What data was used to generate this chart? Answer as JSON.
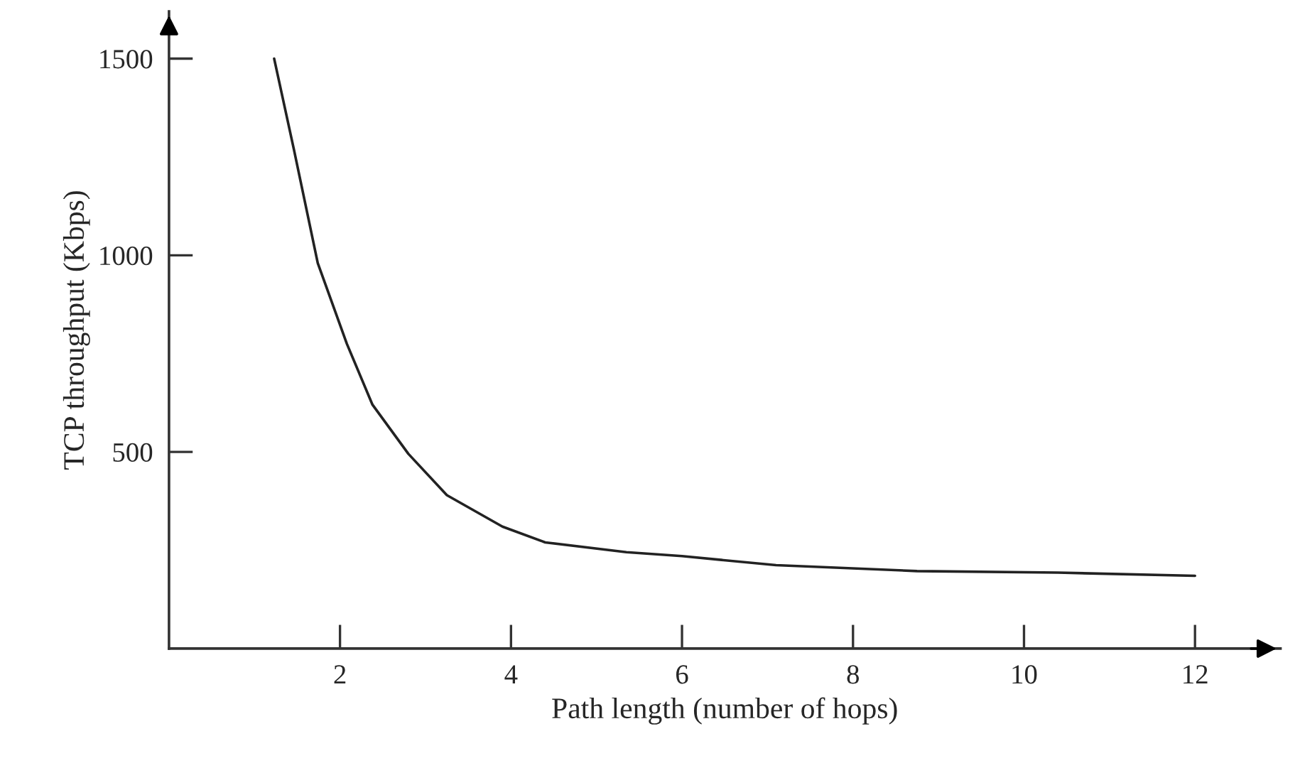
{
  "chart_data": {
    "type": "line",
    "xlabel": "Path length (number of hops)",
    "ylabel": "TCP throughput (Kbps)",
    "x": [
      1.23,
      1.46,
      1.74,
      2.08,
      2.38,
      2.8,
      3.25,
      3.9,
      4.4,
      5.35,
      6.0,
      7.1,
      8.75,
      10.4,
      12.0
    ],
    "series": [
      {
        "color": "#222222",
        "values": [
          1500,
          1270,
          980,
          775,
          620,
          495,
          390,
          310,
          270,
          245,
          235,
          212,
          197,
          193,
          185
        ]
      }
    ],
    "xlim": [
      0,
      13
    ],
    "ylim": [
      0,
      1620
    ],
    "xticks": [
      2,
      4,
      6,
      8,
      10,
      12
    ],
    "yticks": [
      500,
      1000,
      1500
    ],
    "grid": false,
    "legend": false,
    "marker": "none",
    "line_style": "solid"
  }
}
